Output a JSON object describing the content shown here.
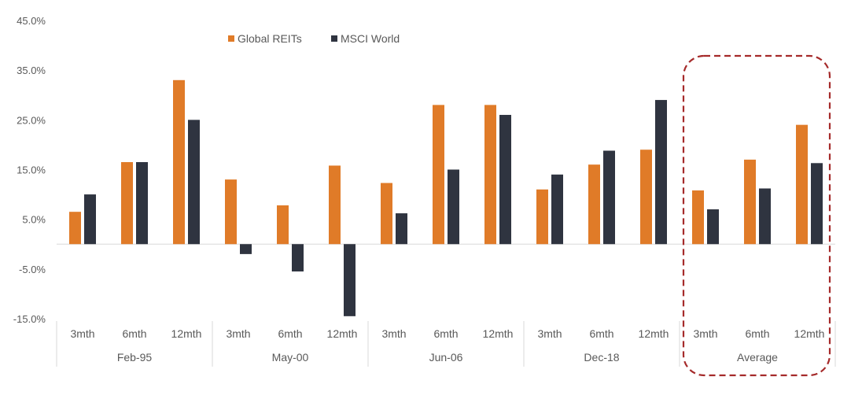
{
  "chart_data": {
    "type": "bar",
    "groups": [
      "Feb-95",
      "May-00",
      "Jun-06",
      "Dec-18",
      "Average"
    ],
    "periods": [
      "3mth",
      "6mth",
      "12mth"
    ],
    "categories": [
      "Feb-95 3mth",
      "Feb-95 6mth",
      "Feb-95 12mth",
      "May-00 3mth",
      "May-00 6mth",
      "May-00 12mth",
      "Jun-06 3mth",
      "Jun-06 6mth",
      "Jun-06 12mth",
      "Dec-18 3mth",
      "Dec-18 6mth",
      "Dec-18 12mth",
      "Average 3mth",
      "Average 6mth",
      "Average 12mth"
    ],
    "series": [
      {
        "name": "Global REITs",
        "color": "#E07B28",
        "values": [
          6.5,
          16.5,
          33.0,
          13.0,
          7.8,
          15.8,
          12.3,
          28.0,
          28.0,
          11.0,
          16.0,
          19.0,
          10.8,
          17.0,
          24.0
        ]
      },
      {
        "name": "MSCI World",
        "color": "#2F3440",
        "values": [
          10.0,
          16.5,
          25.0,
          -2.0,
          -5.5,
          -14.5,
          6.2,
          15.0,
          26.0,
          14.0,
          18.8,
          29.0,
          7.0,
          11.2,
          16.3
        ]
      }
    ],
    "y_ticks": [
      "45.0%",
      "35.0%",
      "25.0%",
      "15.0%",
      "5.0%",
      "-5.0%",
      "-15.0%"
    ],
    "ylim": [
      -15,
      45
    ],
    "legend_position": "top",
    "highlight_group": "Average",
    "highlight_color": "#A52A2A"
  }
}
